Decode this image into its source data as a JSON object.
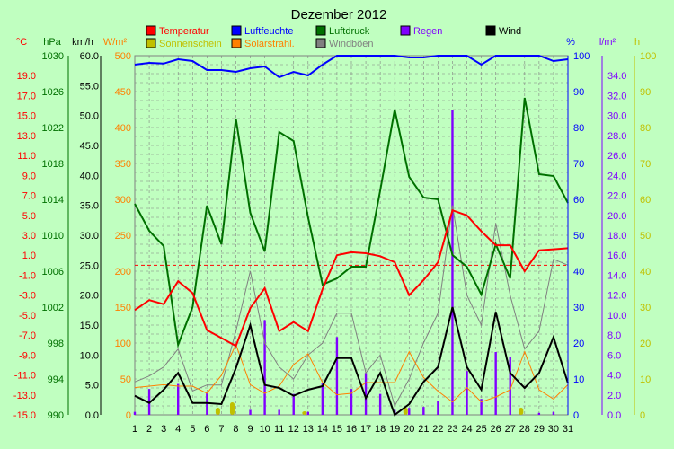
{
  "chart_data": {
    "type": "line",
    "title": "Dezember 2012",
    "x": [
      1,
      2,
      3,
      4,
      5,
      6,
      7,
      8,
      9,
      10,
      11,
      12,
      13,
      14,
      15,
      16,
      17,
      18,
      19,
      20,
      21,
      22,
      23,
      24,
      25,
      26,
      27,
      28,
      29,
      30,
      31
    ],
    "grid": true,
    "legend_position": "top",
    "axes": [
      {
        "unit": "°C",
        "color": "#ff0000",
        "side": "left",
        "ylim": [
          -15,
          21
        ],
        "ticks": [
          "19.0",
          "17.0",
          "15.0",
          "13.0",
          "11.0",
          "9.0",
          "7.0",
          "5.0",
          "3.0",
          "1.0",
          "-1.0",
          "-3.0",
          "-5.0",
          "-7.0",
          "-9.0",
          "-11.0",
          "-13.0",
          "-15.0"
        ]
      },
      {
        "unit": "hPa",
        "color": "#007000",
        "side": "left",
        "ylim": [
          990,
          1030
        ],
        "ticks": [
          "1030",
          "1026",
          "1022",
          "1018",
          "1014",
          "1010",
          "1006",
          "1002",
          "998",
          "994",
          "990"
        ]
      },
      {
        "unit": "km/h",
        "color": "#000000",
        "side": "left",
        "ylim": [
          0,
          60
        ],
        "ticks": [
          "60.0",
          "55.0",
          "50.0",
          "45.0",
          "40.0",
          "35.0",
          "30.0",
          "25.0",
          "20.0",
          "15.0",
          "10.0",
          "5.0",
          "0.0"
        ]
      },
      {
        "unit": "W/m²",
        "color": "#ff8000",
        "side": "left",
        "ylim": [
          0,
          500
        ],
        "ticks": [
          "500",
          "450",
          "400",
          "350",
          "300",
          "250",
          "200",
          "150",
          "100",
          "50",
          "0"
        ]
      },
      {
        "unit": "%",
        "color": "#0000ff",
        "side": "right",
        "ylim": [
          0,
          100
        ],
        "ticks": [
          "100",
          "90",
          "80",
          "70",
          "60",
          "50",
          "40",
          "30",
          "20",
          "10",
          "0"
        ]
      },
      {
        "unit": "l/m²",
        "color": "#8000ff",
        "side": "right",
        "ylim": [
          0,
          36
        ],
        "ticks": [
          "34.0",
          "32.0",
          "30.0",
          "28.0",
          "26.0",
          "24.0",
          "22.0",
          "20.0",
          "18.0",
          "16.0",
          "14.0",
          "12.0",
          "10.0",
          "8.0",
          "6.0",
          "4.0",
          "2.0",
          "0.0"
        ]
      },
      {
        "unit": "h",
        "color": "#c0c000",
        "side": "right",
        "ylim": [
          0,
          100
        ],
        "ticks": [
          "100",
          "90",
          "80",
          "70",
          "60",
          "50",
          "40",
          "30",
          "20",
          "10",
          "0"
        ]
      }
    ],
    "series": [
      {
        "name": "Temperatur",
        "color": "#ff0000",
        "axis": "°C",
        "type": "line",
        "values": [
          -4.5,
          -3.5,
          -3.9,
          -1.6,
          -2.8,
          -6.5,
          -7.3,
          -8.1,
          -4.3,
          -2.3,
          -6.6,
          -5.7,
          -6.6,
          -2.4,
          1.0,
          1.3,
          1.2,
          0.9,
          0.3,
          -3.0,
          -1.5,
          0.3,
          5.5,
          5.0,
          3.4,
          2.0,
          2.0,
          -0.6,
          1.5,
          1.6,
          1.7
        ]
      },
      {
        "name": "Luftfeuchte",
        "color": "#0000ff",
        "axis": "%",
        "type": "line",
        "values": [
          97.5,
          98,
          97.8,
          99,
          98.5,
          96,
          96,
          95.5,
          96.5,
          97,
          94,
          95.5,
          94.5,
          97.5,
          100,
          100,
          100,
          100,
          100,
          99.5,
          99.5,
          100,
          100,
          100,
          97.5,
          100,
          100,
          100,
          100,
          98.5,
          99
        ]
      },
      {
        "name": "Luftdruck",
        "color": "#007000",
        "axis": "hPa",
        "type": "line",
        "values": [
          1013.5,
          1010.5,
          1008.8,
          997.8,
          1002,
          1013.3,
          1009,
          1023,
          1012.5,
          1008.2,
          1021.5,
          1020.5,
          1012,
          1004.5,
          1005.2,
          1006.5,
          1006.5,
          1015,
          1024,
          1016.5,
          1014.2,
          1014,
          1007.8,
          1006.5,
          1003.4,
          1009,
          1005.2,
          1025.3,
          1016.8,
          1016.6,
          1013.6
        ]
      },
      {
        "name": "Regen",
        "color": "#8000ff",
        "axis": "l/m²",
        "type": "bar",
        "values": [
          0.3,
          2.6,
          0,
          3.1,
          0,
          2.3,
          0,
          0,
          0.5,
          9.5,
          0.5,
          2.1,
          0.3,
          3.2,
          7.8,
          2.6,
          4.2,
          2.1,
          0.5,
          0.7,
          0.8,
          1.4,
          30.6,
          4.4,
          1.6,
          6.3,
          5.8,
          0,
          0.2,
          0.3,
          0
        ]
      },
      {
        "name": "Wind",
        "color": "#000000",
        "axis": "km/h",
        "type": "line",
        "values": [
          3.2,
          2,
          4.2,
          7,
          2,
          2,
          1.8,
          7.8,
          15,
          5,
          4.5,
          3.2,
          4.2,
          4.8,
          9.5,
          9.5,
          2.8,
          7,
          0,
          1.8,
          5.5,
          8,
          18,
          8,
          4.2,
          17.2,
          7,
          4.5,
          7,
          13,
          5.3
        ]
      },
      {
        "name": "Sonnenschein",
        "color": "#c0c000",
        "axis": "h",
        "type": "bar",
        "values": [
          0,
          0,
          0,
          0,
          0,
          0,
          2,
          3.5,
          0,
          0,
          0,
          0,
          1,
          0,
          0,
          0,
          0,
          0,
          0,
          2,
          0,
          0,
          0,
          0,
          0,
          0,
          0,
          2,
          0,
          0,
          0
        ]
      },
      {
        "name": "Solarstrahl.",
        "color": "#ff8000",
        "axis": "W/m²",
        "type": "line",
        "values": [
          38,
          40,
          42,
          40,
          40,
          30,
          55,
          98,
          42,
          30,
          40,
          70,
          85,
          45,
          28,
          30,
          45,
          45,
          45,
          88,
          52,
          33,
          18,
          38,
          18,
          25,
          35,
          88,
          35,
          22,
          42
        ]
      },
      {
        "name": "Windböen",
        "color": "#808080",
        "axis": "km/h",
        "type": "line",
        "values": [
          5.5,
          6.5,
          8,
          11,
          4,
          5,
          5,
          14,
          24,
          12,
          8,
          6,
          10,
          12,
          17,
          17,
          7,
          10,
          1.5,
          6,
          12,
          17,
          35,
          20,
          15,
          32,
          20,
          11,
          14,
          26,
          25
        ]
      }
    ]
  }
}
